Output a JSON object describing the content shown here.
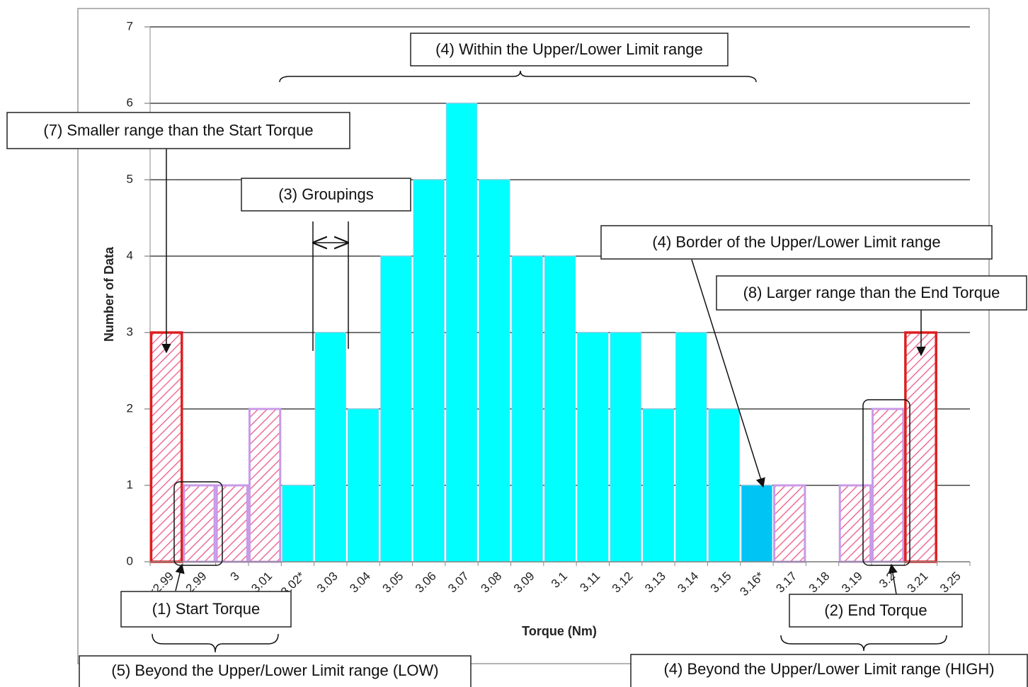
{
  "chart_data": {
    "type": "bar",
    "x_label": "Torque (Nm)",
    "y_label": "Number of Data",
    "categories": [
      "<2.99",
      "2.99",
      "3",
      "3.01",
      "3.02*",
      "3.03",
      "3.04",
      "3.05",
      "3.06",
      "3.07",
      "3.08",
      "3.09",
      "3.1",
      "3.11",
      "3.12",
      "3.13",
      "3.14",
      "3.15",
      "3.16*",
      "3.17",
      "3.18",
      "3.19",
      "3.2",
      "3.21",
      "3.25"
    ],
    "values": [
      3,
      1,
      1,
      2,
      1,
      3,
      2,
      4,
      5,
      6,
      5,
      4,
      4,
      3,
      3,
      2,
      3,
      2,
      1,
      1,
      0,
      1,
      2,
      3,
      0
    ],
    "bar_colors": [
      "#dd1f1f",
      "#c99ae8",
      "#c99ae8",
      "#c99ae8",
      "#00ffff",
      "#00ffff",
      "#00ffff",
      "#00ffff",
      "#00ffff",
      "#00ffff",
      "#00ffff",
      "#00ffff",
      "#00ffff",
      "#00ffff",
      "#00ffff",
      "#00ffff",
      "#00ffff",
      "#00ffff",
      "#00c4f4",
      "#c99ae8",
      "#c99ae8",
      "#c99ae8",
      "#c99ae8",
      "#dd1f1f",
      "#c99ae8"
    ],
    "hatched": [
      true,
      true,
      true,
      true,
      false,
      false,
      false,
      false,
      false,
      false,
      false,
      false,
      false,
      false,
      false,
      false,
      false,
      false,
      false,
      true,
      true,
      true,
      true,
      true,
      true
    ],
    "ylim": [
      0,
      7
    ],
    "yticks": [
      0,
      1,
      2,
      3,
      4,
      5,
      6,
      7
    ],
    "grid": true,
    "annotations": [
      "(4) Within the Upper/Lower Limit range",
      "(7) Smaller range than the Start Torque",
      "(3) Groupings",
      "(4) Border of the Upper/Lower Limit range",
      "(8) Larger range than the End Torque",
      "(1) Start Torque",
      "(2) End Torque",
      "(5) Beyond the Upper/Lower Limit range (LOW)",
      "(4) Beyond the Upper/Lower Limit range (HIGH)"
    ]
  }
}
